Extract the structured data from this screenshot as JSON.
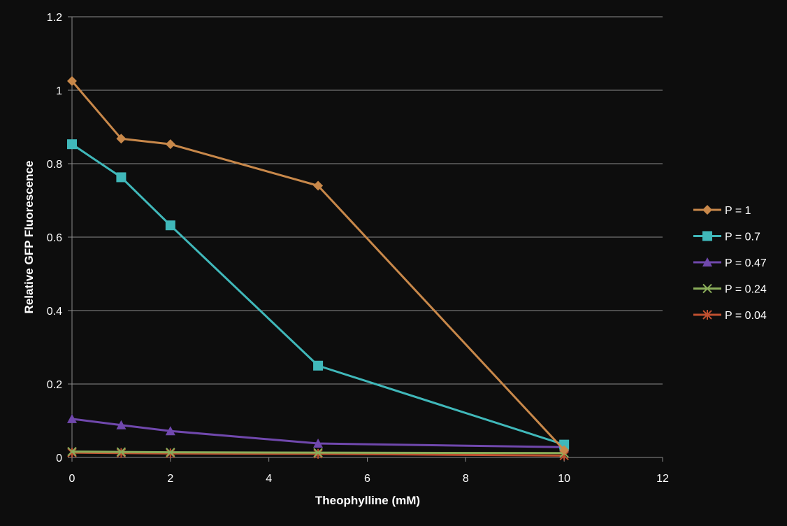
{
  "chart_data": {
    "type": "line",
    "title": "",
    "xlabel": "Theophylline (mM)",
    "ylabel": "Relative GFP Fluorescence",
    "xlim": [
      0,
      12
    ],
    "ylim": [
      0,
      1.2
    ],
    "xticks": [
      0,
      2,
      4,
      6,
      8,
      10,
      12
    ],
    "yticks": [
      0,
      0.2,
      0.4,
      0.6,
      0.8,
      1,
      1.2
    ],
    "xtick_labels": [
      "0",
      "2",
      "4",
      "6",
      "8",
      "10",
      "12"
    ],
    "ytick_labels": [
      "0",
      "0.2",
      "0.4",
      "0.6",
      "0.8",
      "1",
      "1.2"
    ],
    "grid": "horizontal",
    "legend_position": "right",
    "background": "#0d0d0d",
    "series": [
      {
        "name": "P = 1",
        "color": "#c8884a",
        "marker": "diamond",
        "x": [
          0,
          1,
          2,
          5,
          10
        ],
        "y": [
          1.025,
          0.868,
          0.853,
          0.74,
          0.02
        ]
      },
      {
        "name": "P = 0.7",
        "color": "#40b8ba",
        "marker": "square",
        "x": [
          0,
          1,
          2,
          5,
          10
        ],
        "y": [
          0.853,
          0.763,
          0.632,
          0.25,
          0.035
        ]
      },
      {
        "name": "P = 0.47",
        "color": "#7048ad",
        "marker": "triangle",
        "x": [
          0,
          1,
          2,
          5,
          10
        ],
        "y": [
          0.105,
          0.088,
          0.072,
          0.038,
          0.028
        ]
      },
      {
        "name": "P = 0.24",
        "color": "#8aad5a",
        "marker": "x",
        "x": [
          0,
          1,
          2,
          5,
          10
        ],
        "y": [
          0.016,
          0.015,
          0.014,
          0.013,
          0.012
        ]
      },
      {
        "name": "P = 0.04",
        "color": "#c05030",
        "marker": "star",
        "x": [
          0,
          1,
          2,
          5,
          10
        ],
        "y": [
          0.013,
          0.012,
          0.011,
          0.01,
          0.005
        ]
      }
    ]
  }
}
